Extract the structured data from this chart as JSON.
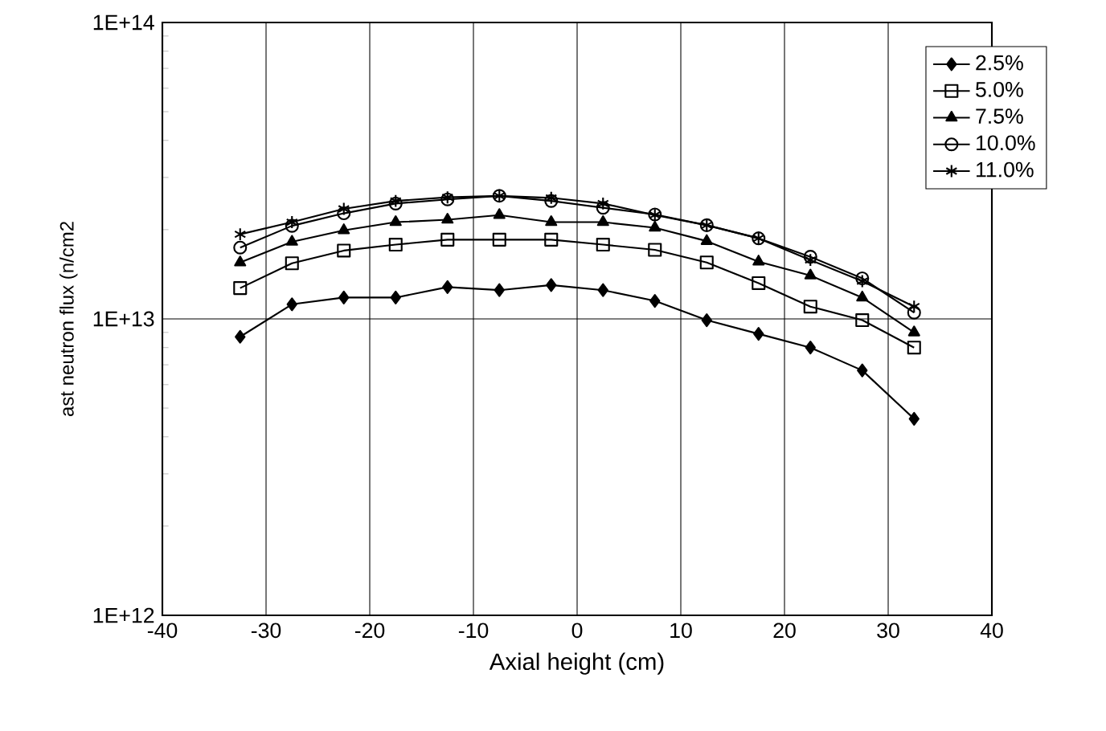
{
  "chart_data": {
    "type": "line",
    "xlabel": "Axial height (cm)",
    "ylabel": "ast neutron flux (n/cm2",
    "x": [
      -32.5,
      -27.5,
      -22.5,
      -17.5,
      -12.5,
      -7.5,
      -2.5,
      2.5,
      7.5,
      12.5,
      17.5,
      22.5,
      27.5,
      32.5
    ],
    "series": [
      {
        "name": "2.5%",
        "color": "#000000",
        "marker": "diamond",
        "values": [
          8700000000000.0,
          11200000000000.0,
          11800000000000.0,
          11800000000000.0,
          12800000000000.0,
          12500000000000.0,
          13000000000000.0,
          12500000000000.0,
          11500000000000.0,
          9900000000000.0,
          8900000000000.0,
          8000000000000.0,
          6700000000000.0,
          4600000000000.0
        ]
      },
      {
        "name": "5.0%",
        "color": "#000000",
        "marker": "square",
        "values": [
          12700000000000.0,
          15400000000000.0,
          17000000000000.0,
          17800000000000.0,
          18500000000000.0,
          18500000000000.0,
          18500000000000.0,
          17800000000000.0,
          17100000000000.0,
          15500000000000.0,
          13200000000000.0,
          11000000000000.0,
          9900000000000.0,
          8000000000000.0
        ]
      },
      {
        "name": "7.5%",
        "color": "#000000",
        "marker": "triangle",
        "values": [
          15500000000000.0,
          18200000000000.0,
          19900000000000.0,
          21200000000000.0,
          21600000000000.0,
          22400000000000.0,
          21200000000000.0,
          21200000000000.0,
          20300000000000.0,
          18300000000000.0,
          15600000000000.0,
          14000000000000.0,
          11800000000000.0,
          9000000000000.0
        ]
      },
      {
        "name": "10.0%",
        "color": "#000000",
        "marker": "circle",
        "values": [
          17400000000000.0,
          20600000000000.0,
          22700000000000.0,
          24500000000000.0,
          25300000000000.0,
          26000000000000.0,
          25000000000000.0,
          23700000000000.0,
          22500000000000.0,
          20700000000000.0,
          18700000000000.0,
          16200000000000.0,
          13700000000000.0,
          10500000000000.0
        ]
      },
      {
        "name": "11.0%",
        "color": "#000000",
        "marker": "cross",
        "values": [
          19300000000000.0,
          21200000000000.0,
          23500000000000.0,
          25000000000000.0,
          25700000000000.0,
          26000000000000.0,
          25600000000000.0,
          24500000000000.0,
          22400000000000.0,
          20700000000000.0,
          18700000000000.0,
          15800000000000.0,
          13400000000000.0,
          11000000000000.0
        ]
      }
    ],
    "xlim": [
      -40,
      40
    ],
    "xticks": [
      -40,
      -30,
      -20,
      -10,
      0,
      10,
      20,
      30,
      40
    ],
    "ylim": [
      1000000000000.0,
      100000000000000.0
    ],
    "yticks": [
      {
        "value": 1000000000000.0,
        "label": "1E+12"
      },
      {
        "value": 10000000000000.0,
        "label": "1E+13"
      },
      {
        "value": 100000000000000.0,
        "label": "1E+14"
      }
    ],
    "log": "y",
    "grid": true,
    "legend": "top right",
    "line_style": "solid"
  }
}
